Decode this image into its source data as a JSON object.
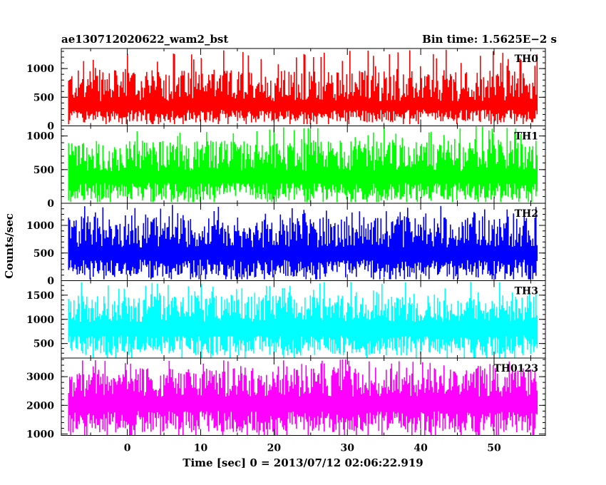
{
  "chart_data": {
    "type": "line",
    "title": "ae130712020622_wam2_bst",
    "subtitle": "Bin time: 1.5625E−2 s",
    "xlabel": "Time [sec] 0 = 2013/07/12 02:06:22.919",
    "ylabel": "Counts/sec",
    "xlim": [
      -9,
      57
    ],
    "x_ticks": [
      "0",
      "10",
      "20",
      "30",
      "40",
      "50"
    ],
    "x_tick_values": [
      0,
      10,
      20,
      30,
      40,
      50
    ],
    "data_x_range": [
      -8,
      56
    ],
    "bin_time_sec": 0.015625,
    "grid": false,
    "series": [
      {
        "name": "TH0",
        "color": "#ff0000",
        "ylim": [
          0,
          1350
        ],
        "y_ticks": [
          0,
          500,
          1000
        ],
        "mean": 430,
        "low_floor": 60,
        "typical_max": 980,
        "peak_max": 1330
      },
      {
        "name": "TH1",
        "color": "#00ff00",
        "ylim": [
          0,
          1150
        ],
        "y_ticks": [
          0,
          500,
          1000
        ],
        "mean": 480,
        "low_floor": 40,
        "typical_max": 930,
        "peak_max": 1150
      },
      {
        "name": "TH2",
        "color": "#0000ff",
        "ylim": [
          0,
          1400
        ],
        "y_ticks": [
          0,
          500,
          1000
        ],
        "mean": 600,
        "low_floor": 50,
        "typical_max": 1150,
        "peak_max": 1380
      },
      {
        "name": "TH3",
        "color": "#00ffff",
        "ylim": [
          200,
          1800
        ],
        "y_ticks": [
          500,
          1000,
          1500
        ],
        "mean": 950,
        "low_floor": 250,
        "typical_max": 1500,
        "peak_max": 1780
      },
      {
        "name": "TH0123",
        "color": "#ff00ff",
        "ylim": [
          950,
          3650
        ],
        "y_ticks": [
          1000,
          2000,
          3000
        ],
        "mean": 2300,
        "low_floor": 1050,
        "typical_max": 3300,
        "peak_max": 3600
      }
    ]
  }
}
